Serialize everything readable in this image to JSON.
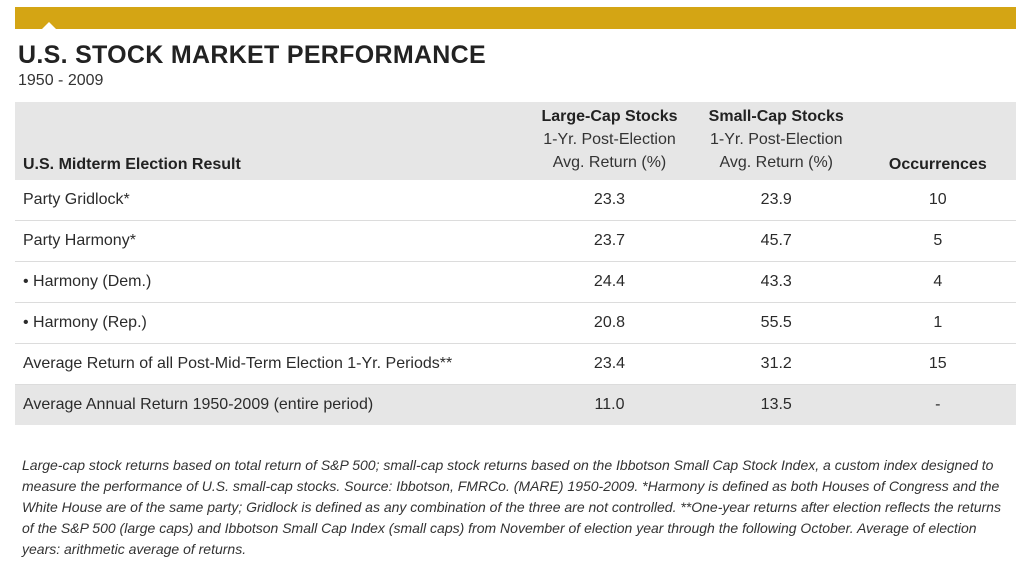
{
  "title": "U.S. STOCK MARKET PERFORMANCE",
  "subtitle": "1950 - 2009",
  "chart_data": {
    "type": "table",
    "columns": {
      "label": "U.S. Midterm Election Result",
      "large_cap": {
        "name": "Large-Cap Stocks",
        "line1": "1-Yr. Post-Election",
        "line2": "Avg. Return (%)"
      },
      "small_cap": {
        "name": "Small-Cap Stocks",
        "line1": "1-Yr. Post-Election",
        "line2": "Avg. Return (%)"
      },
      "occurrences": "Occurrences"
    },
    "rows": [
      {
        "label": "Party Gridlock*",
        "large_cap": "23.3",
        "small_cap": "23.9",
        "occurrences": "10"
      },
      {
        "label": "Party Harmony*",
        "large_cap": "23.7",
        "small_cap": "45.7",
        "occurrences": "5"
      },
      {
        "label": "• Harmony (Dem.)",
        "large_cap": "24.4",
        "small_cap": "43.3",
        "occurrences": "4"
      },
      {
        "label": "• Harmony (Rep.)",
        "large_cap": "20.8",
        "small_cap": "55.5",
        "occurrences": "1"
      },
      {
        "label": "Average Return of all Post-Mid-Term Election 1-Yr. Periods**",
        "large_cap": "23.4",
        "small_cap": "31.2",
        "occurrences": "15"
      },
      {
        "label": "Average Annual Return 1950-2009 (entire period)",
        "large_cap": "11.0",
        "small_cap": "13.5",
        "occurrences": "-"
      }
    ]
  },
  "footnote": "Large-cap stock returns based on total return of S&P 500; small-cap stock returns based on the Ibbotson Small Cap Stock Index, a custom index designed to measure the performance of U.S. small-cap stocks. Source: Ibbotson, FMRCo. (MARE) 1950-2009. *Harmony is defined as both Houses of Congress and the White House are of the same party; Gridlock is defined as any combination of the three are not controlled.  **One-year returns after election reflects the returns of the S&P 500 (large caps) and Ibbotson Small Cap Index (small caps) from November of election year through the following October. Average of election years: arithmetic average of returns.",
  "colors": {
    "accent_bar": "#d4a514",
    "header_bg": "#e6e6e6",
    "shaded_row_bg": "#e6e6e6"
  }
}
